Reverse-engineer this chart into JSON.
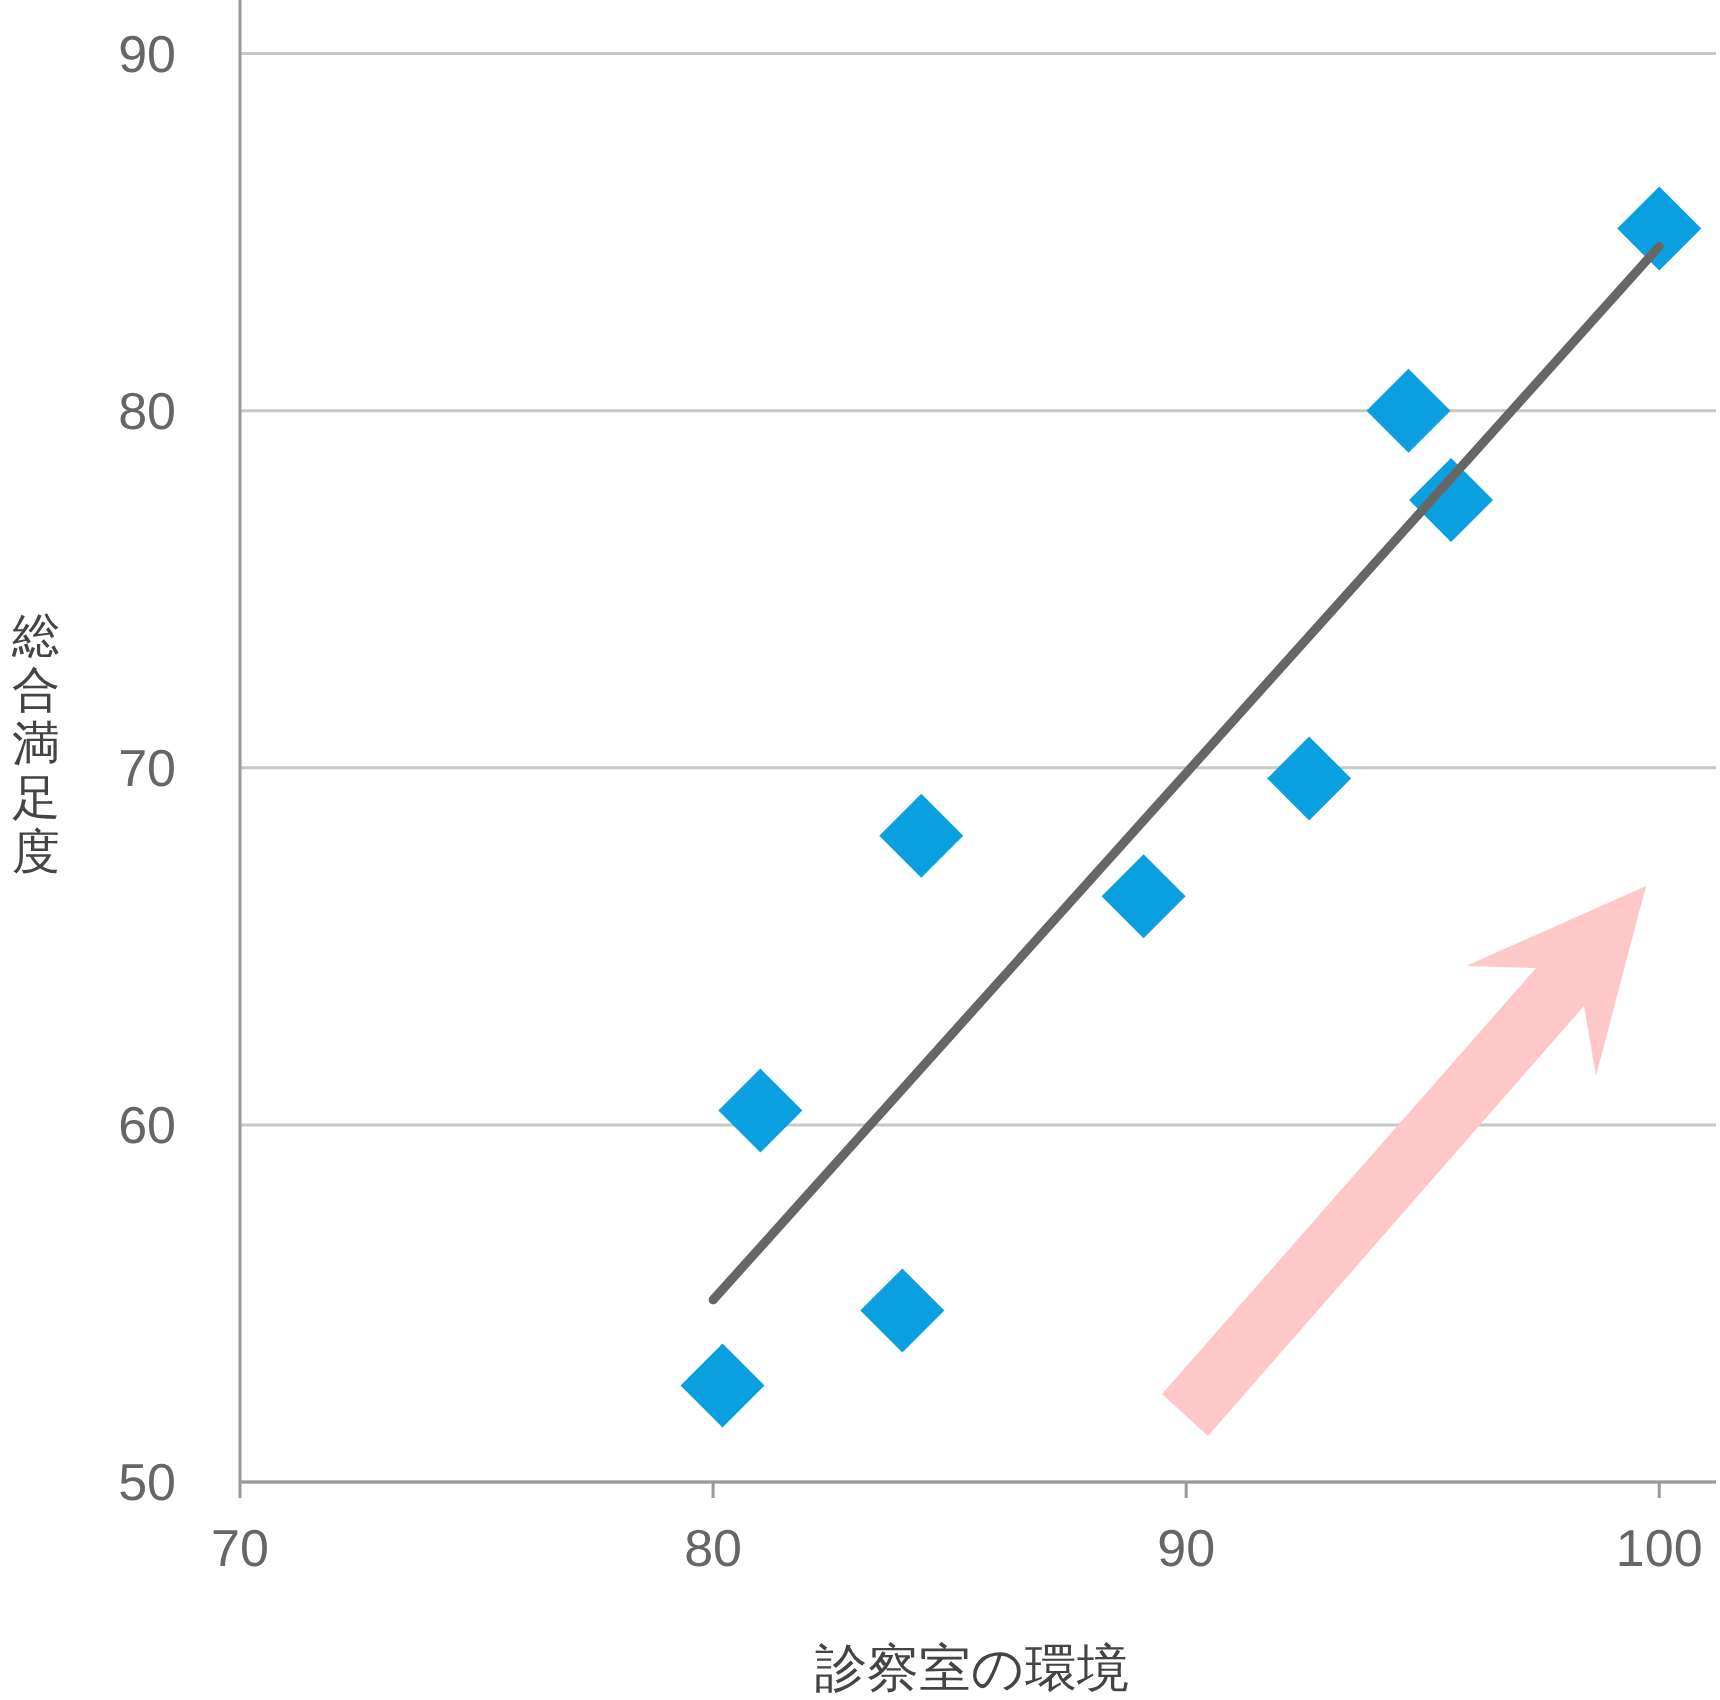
{
  "chart_data": {
    "type": "scatter",
    "xlabel": "診察室の環境",
    "ylabel": "総合満足度",
    "xlim": [
      70,
      101.2
    ],
    "ylim": [
      50,
      91.5
    ],
    "xticks": [
      70,
      80,
      90,
      100
    ],
    "yticks": [
      50,
      60,
      70,
      80,
      90
    ],
    "grid": "y",
    "marker": "diamond",
    "series": [
      {
        "color": "#0aa0e0",
        "x": [
          80.2,
          81.0,
          84.0,
          84.4,
          89.1,
          92.6,
          94.7,
          95.6,
          100.0
        ],
        "values": [
          52.7,
          60.4,
          54.8,
          68.1,
          66.4,
          69.7,
          80.0,
          77.5,
          85.1
        ]
      },
      {
        "type": "line",
        "marker": "none",
        "color": "#666666",
        "x": [
          80,
          100
        ],
        "values": [
          55.1,
          84.6
        ]
      }
    ]
  }
}
